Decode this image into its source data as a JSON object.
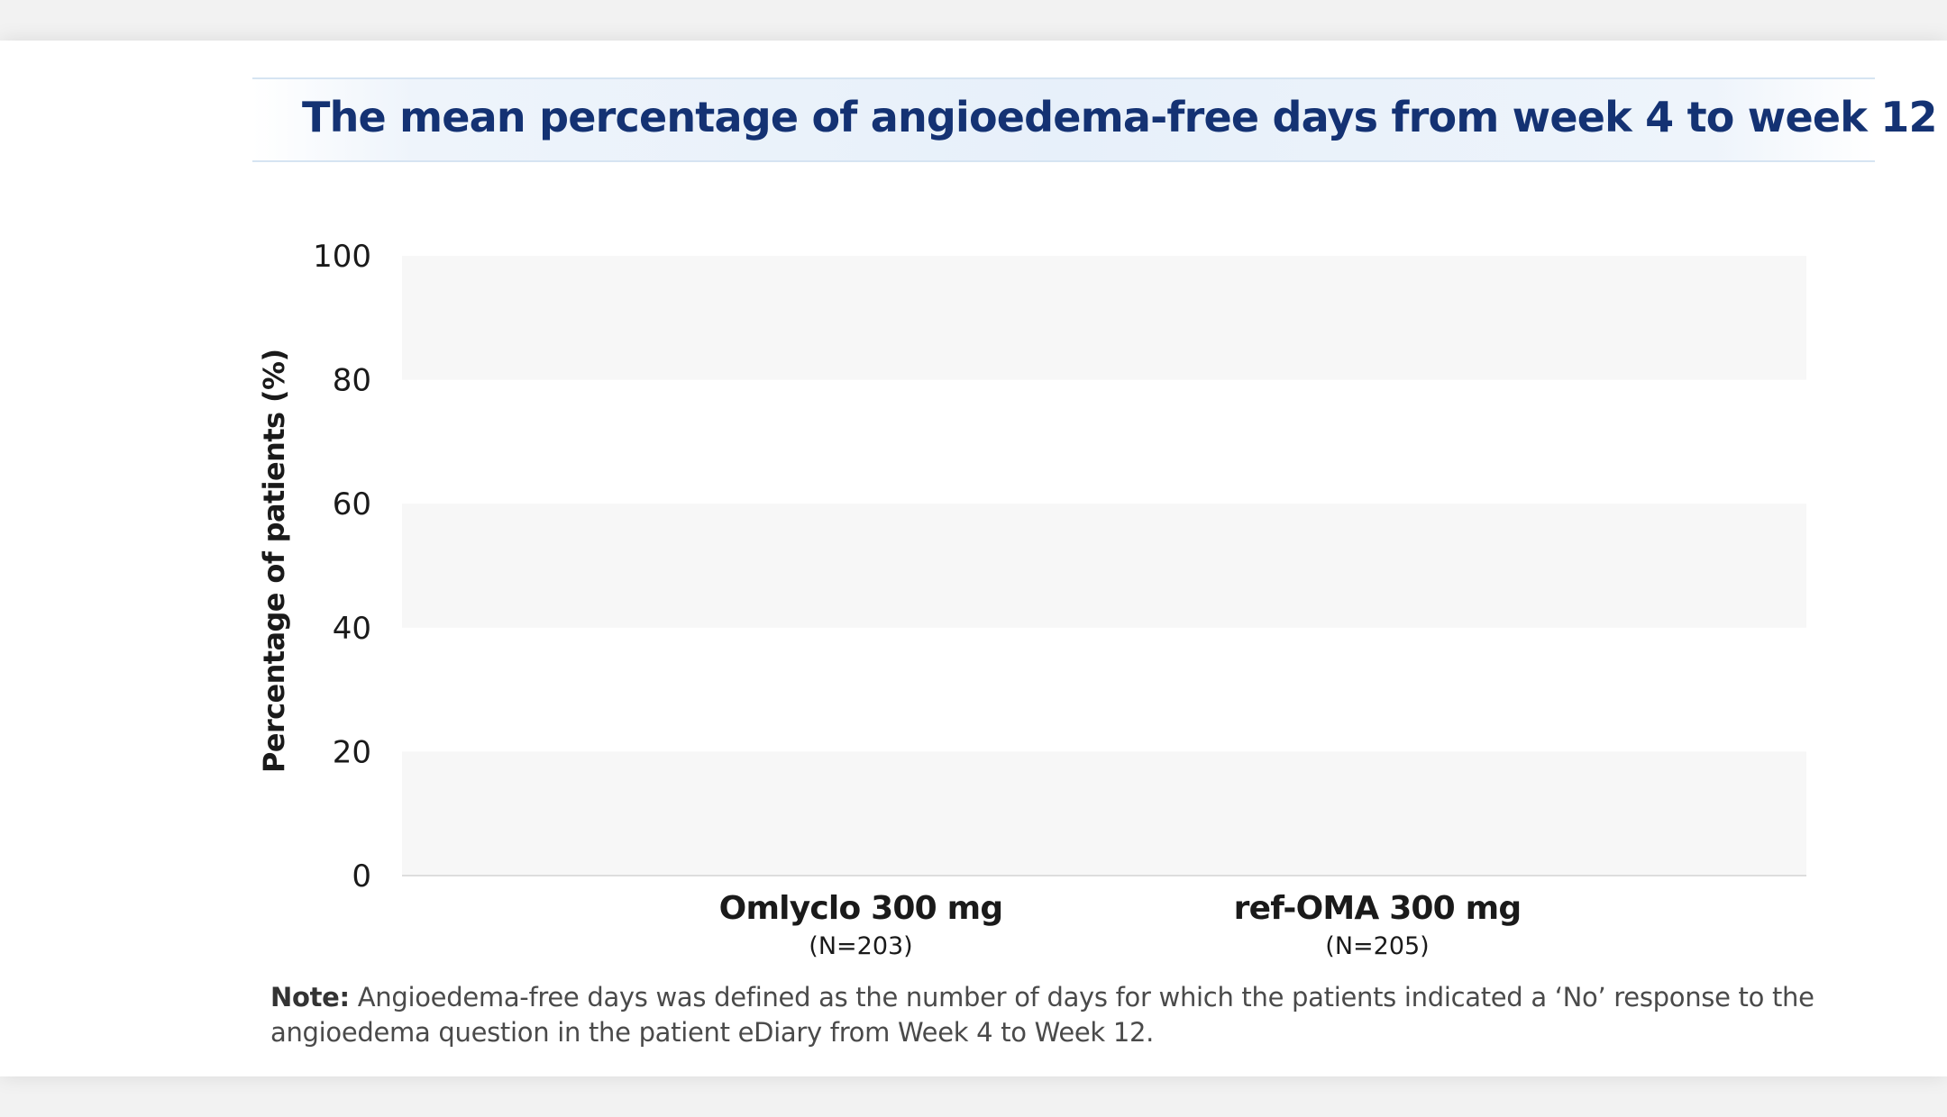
{
  "title": "The mean percentage of angioedema-free days from week 4 to week 12",
  "colors": {
    "title": "#143273",
    "band": "#f7f7f7",
    "text": "#1a1a1a",
    "note": "#4a4a4a"
  },
  "chart_data": {
    "type": "bar",
    "title": "The mean percentage of angioedema-free days from week 4 to week 12",
    "ylabel": "Percentage of patients (%)",
    "xlabel": "",
    "ylim": [
      0,
      100
    ],
    "yticks": [
      "0",
      "20",
      "40",
      "60",
      "80",
      "100"
    ],
    "grid": "alternating horizontal bands",
    "categories": [
      {
        "name": "Omlyclo 300 mg",
        "n": "(N=203)"
      },
      {
        "name": "ref-OMA 300 mg",
        "n": "(N=205)"
      }
    ],
    "values": [
      null,
      null
    ]
  },
  "note": {
    "label": "Note:",
    "text": " Angioedema-free days was defined as the number of days for which the patients indicated a ‘No’ response to the angioedema question in the patient eDiary from Week 4 to Week 12."
  }
}
